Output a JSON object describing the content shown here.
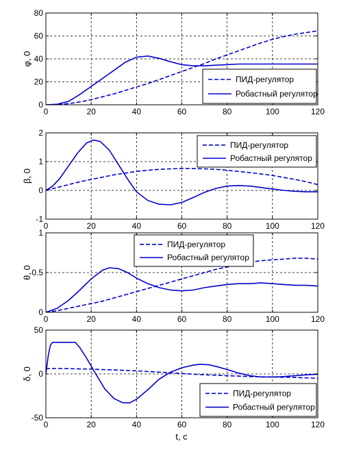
{
  "line_color": "#0000CC",
  "legend": {
    "dashed_label": "ПИД-регулятор",
    "solid_label": "Робастный регулятор"
  },
  "xlabel": "t, c",
  "chart_data": [
    {
      "type": "line",
      "ylabel": "φ, 0",
      "xlim": [
        0,
        120
      ],
      "ylim": [
        0,
        80
      ],
      "xticks": [
        0,
        20,
        40,
        60,
        80,
        100,
        120
      ],
      "yticks": [
        0,
        20,
        40,
        60,
        80
      ],
      "grid": true,
      "legend_position": "lower-right",
      "series": [
        {
          "name": "ПИД-регулятор",
          "style": "dashed",
          "x": [
            0,
            5,
            10,
            15,
            20,
            25,
            30,
            35,
            40,
            45,
            50,
            55,
            60,
            65,
            70,
            75,
            80,
            85,
            90,
            95,
            100,
            105,
            110,
            115,
            120
          ],
          "values": [
            0,
            0.2,
            1,
            2.5,
            4.5,
            7,
            9.5,
            12.5,
            15.5,
            18.5,
            22,
            25.5,
            29,
            32.5,
            36,
            40,
            43.5,
            47,
            50.5,
            54,
            57,
            59.5,
            61.5,
            63,
            64.5
          ]
        },
        {
          "name": "Робастный регулятор",
          "style": "solid",
          "x": [
            0,
            5,
            10,
            15,
            20,
            25,
            30,
            35,
            40,
            45,
            50,
            55,
            60,
            65,
            70,
            75,
            80,
            85,
            90,
            95,
            100,
            105,
            110,
            115,
            120
          ],
          "values": [
            0,
            0.5,
            3,
            9,
            16,
            23,
            30,
            37,
            41.5,
            42.5,
            40.5,
            37.5,
            35,
            34,
            34,
            34.5,
            35,
            35.5,
            35.5,
            35.5,
            35.5,
            35.5,
            35.5,
            35.5,
            35.5
          ]
        }
      ]
    },
    {
      "type": "line",
      "ylabel": "β, 0",
      "xlim": [
        0,
        120
      ],
      "ylim": [
        -1,
        2
      ],
      "xticks": [
        0,
        20,
        40,
        60,
        80,
        100,
        120
      ],
      "yticks": [
        -1,
        0,
        1,
        2
      ],
      "grid": true,
      "legend_position": "top-right",
      "series": [
        {
          "name": "ПИД-регулятор",
          "style": "dashed",
          "x": [
            0,
            5,
            10,
            15,
            20,
            25,
            30,
            35,
            40,
            45,
            50,
            55,
            60,
            65,
            70,
            75,
            80,
            85,
            90,
            95,
            100,
            105,
            110,
            115,
            120
          ],
          "values": [
            0,
            0.1,
            0.2,
            0.3,
            0.38,
            0.46,
            0.54,
            0.6,
            0.66,
            0.7,
            0.73,
            0.75,
            0.76,
            0.76,
            0.75,
            0.73,
            0.7,
            0.66,
            0.62,
            0.57,
            0.52,
            0.45,
            0.38,
            0.3,
            0.2
          ]
        },
        {
          "name": "Робастный регулятор",
          "style": "solid",
          "x": [
            0,
            3,
            6,
            10,
            14,
            18,
            21,
            24,
            28,
            32,
            36,
            40,
            45,
            50,
            55,
            60,
            65,
            70,
            75,
            80,
            85,
            90,
            95,
            100,
            105,
            110,
            115,
            120
          ],
          "values": [
            0,
            0.15,
            0.4,
            0.85,
            1.3,
            1.65,
            1.75,
            1.7,
            1.4,
            0.9,
            0.4,
            -0.05,
            -0.35,
            -0.48,
            -0.5,
            -0.42,
            -0.25,
            -0.07,
            0.07,
            0.15,
            0.17,
            0.15,
            0.1,
            0.05,
            0,
            -0.03,
            -0.05,
            -0.05
          ]
        }
      ]
    },
    {
      "type": "line",
      "ylabel": "θ, 0",
      "xlim": [
        0,
        120
      ],
      "ylim": [
        0,
        1
      ],
      "xticks": [
        0,
        20,
        40,
        60,
        80,
        100,
        120
      ],
      "yticks": [
        0,
        0.5,
        1
      ],
      "grid": true,
      "legend_position": "top-center",
      "series": [
        {
          "name": "ПИД-регулятор",
          "style": "dashed",
          "x": [
            0,
            5,
            10,
            15,
            20,
            25,
            30,
            35,
            40,
            45,
            50,
            55,
            60,
            65,
            70,
            75,
            80,
            85,
            90,
            95,
            100,
            105,
            110,
            115,
            120
          ],
          "values": [
            0,
            0.02,
            0.05,
            0.08,
            0.11,
            0.14,
            0.18,
            0.22,
            0.26,
            0.3,
            0.34,
            0.38,
            0.42,
            0.46,
            0.5,
            0.54,
            0.57,
            0.6,
            0.63,
            0.65,
            0.66,
            0.67,
            0.68,
            0.68,
            0.67
          ]
        },
        {
          "name": "Робастный регулятор",
          "style": "solid",
          "x": [
            0,
            5,
            10,
            15,
            20,
            25,
            28,
            32,
            36,
            40,
            45,
            50,
            55,
            60,
            65,
            70,
            75,
            80,
            85,
            90,
            95,
            100,
            105,
            110,
            115,
            120
          ],
          "values": [
            0,
            0.05,
            0.15,
            0.28,
            0.42,
            0.53,
            0.56,
            0.55,
            0.5,
            0.43,
            0.36,
            0.31,
            0.28,
            0.27,
            0.28,
            0.31,
            0.33,
            0.35,
            0.36,
            0.36,
            0.37,
            0.36,
            0.35,
            0.34,
            0.34,
            0.33
          ]
        }
      ]
    },
    {
      "type": "line",
      "ylabel": "δ, 0",
      "xlim": [
        0,
        120
      ],
      "ylim": [
        -50,
        50
      ],
      "xticks": [
        0,
        20,
        40,
        60,
        80,
        100,
        120
      ],
      "yticks": [
        -50,
        0,
        50
      ],
      "grid": true,
      "legend_position": "lower-right",
      "series": [
        {
          "name": "ПИД-регулятор",
          "style": "dashed",
          "x": [
            0,
            5,
            10,
            20,
            30,
            40,
            50,
            60,
            70,
            80,
            90,
            100,
            110,
            120
          ],
          "values": [
            6,
            6.2,
            6,
            5.5,
            4.5,
            3.5,
            2,
            0.5,
            -1,
            -2,
            -3,
            -3.5,
            -4,
            -5
          ]
        },
        {
          "name": "Робастный регулятор",
          "style": "solid",
          "x": [
            0,
            1,
            2,
            3,
            4,
            13,
            15,
            18,
            22,
            26,
            30,
            34,
            37,
            40,
            45,
            50,
            55,
            60,
            65,
            68,
            72,
            76,
            80,
            85,
            90,
            95,
            100,
            105,
            110,
            115,
            120
          ],
          "values": [
            0,
            20,
            33,
            36,
            36,
            36,
            30,
            18,
            0,
            -17,
            -28,
            -33,
            -33,
            -29,
            -18,
            -6,
            2,
            7,
            10,
            11,
            10.5,
            8,
            5,
            1,
            -2,
            -3.5,
            -3.5,
            -3,
            -2,
            -1,
            -0.5
          ]
        }
      ]
    }
  ]
}
